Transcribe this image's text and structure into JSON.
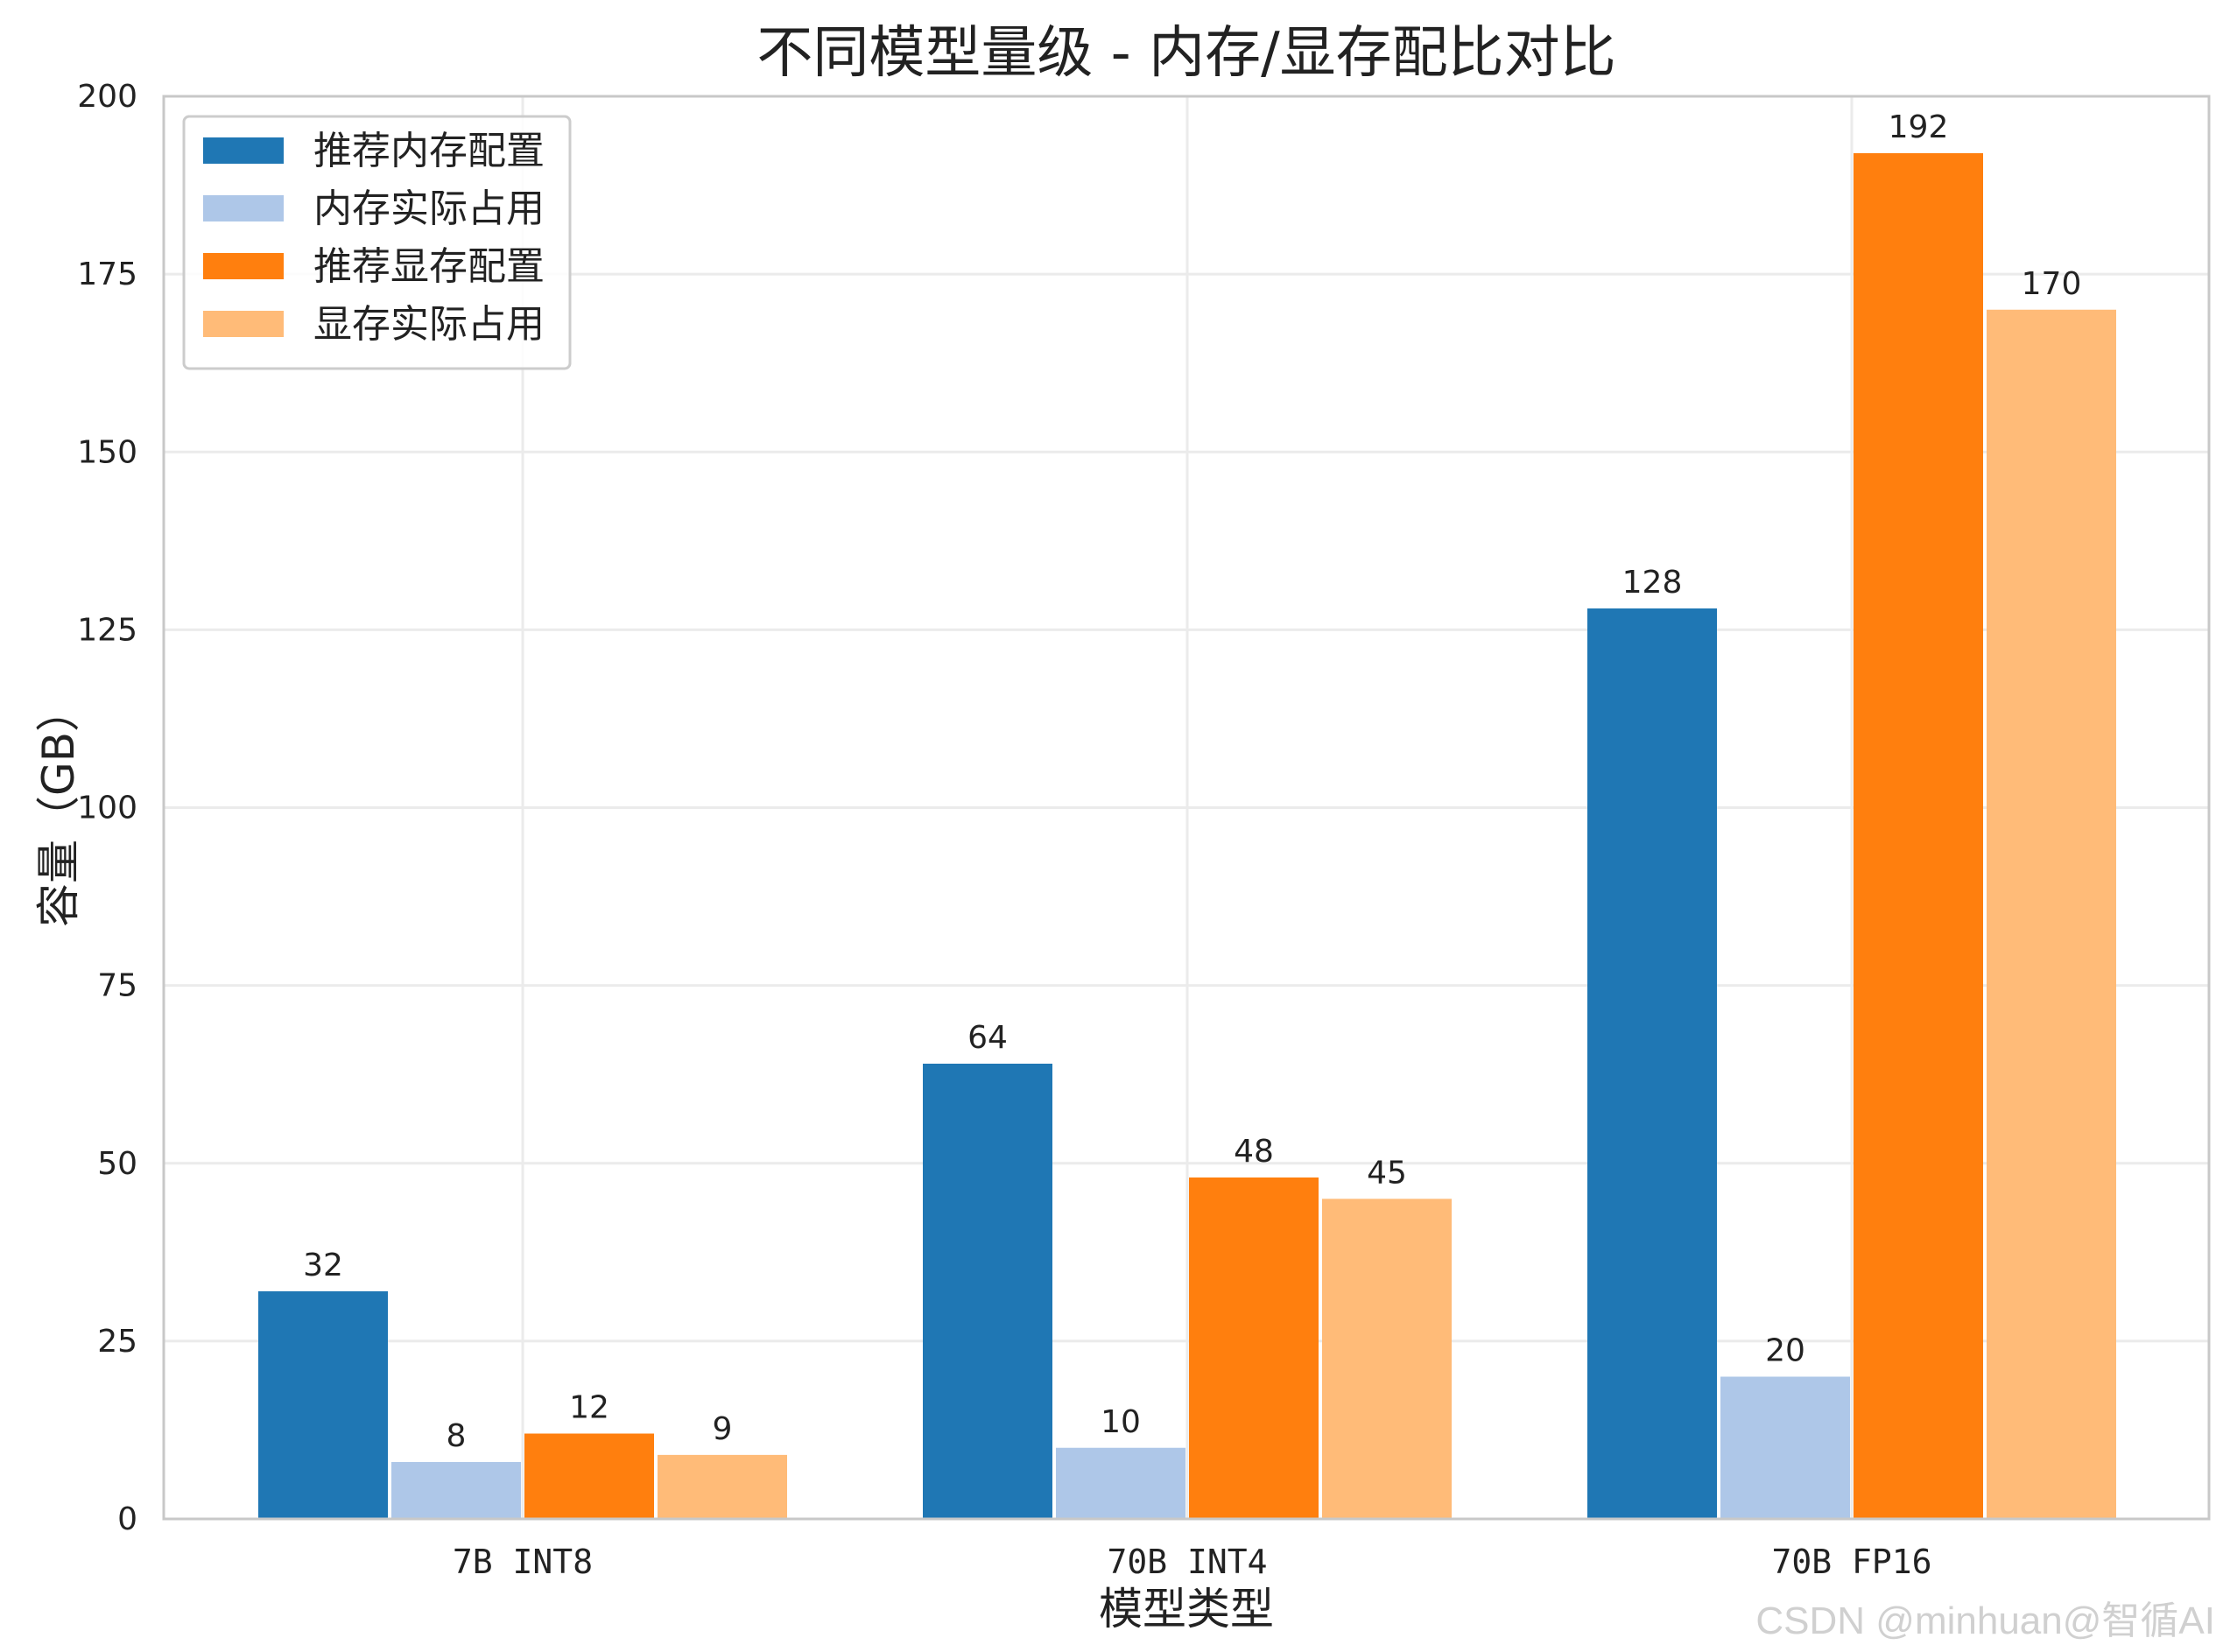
{
  "chart_data": {
    "type": "bar",
    "title": "不同模型量级 - 内存/显存配比对比",
    "xlabel": "模型类型",
    "ylabel": "容量（GB）",
    "categories": [
      "7B INT8",
      "70B INT4",
      "70B FP16"
    ],
    "series": [
      {
        "name": "推荐内存配置",
        "values": [
          32,
          64,
          128
        ],
        "color": "#1f77b4"
      },
      {
        "name": "内存实际占用",
        "values": [
          8,
          10,
          20
        ],
        "color": "#aec7e8"
      },
      {
        "name": "推荐显存配置",
        "values": [
          12,
          48,
          192
        ],
        "color": "#ff7f0e"
      },
      {
        "name": "显存实际占用",
        "values": [
          9,
          45,
          170
        ],
        "color": "#ffbb78"
      }
    ],
    "ylim": [
      0,
      200
    ],
    "yticks": [
      0,
      25,
      50,
      75,
      100,
      125,
      150,
      175,
      200
    ],
    "grid": true,
    "legend_position": "top-left"
  },
  "watermark": "CSDN @minhuan@智循AI"
}
